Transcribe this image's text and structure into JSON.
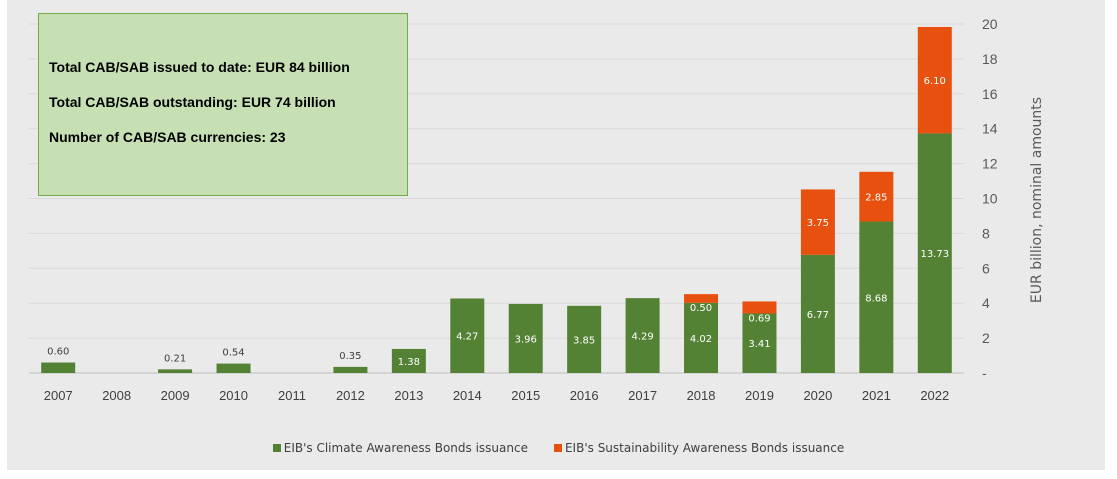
{
  "info_box": {
    "line1": "Total CAB/SAB issued to date: EUR 84 billion",
    "line2": "Total CAB/SAB outstanding: EUR 74 billion",
    "line3": "Number of CAB/SAB currencies: 23"
  },
  "chart_data": {
    "type": "bar",
    "stacked": true,
    "categories": [
      "2007",
      "2008",
      "2009",
      "2010",
      "2011",
      "2012",
      "2013",
      "2014",
      "2015",
      "2016",
      "2017",
      "2018",
      "2019",
      "2020",
      "2021",
      "2022"
    ],
    "series": [
      {
        "name": "EIB's Climate Awareness Bonds issuance",
        "color": "#548235",
        "values": [
          0.6,
          null,
          0.21,
          0.54,
          null,
          0.35,
          1.38,
          4.27,
          3.96,
          3.85,
          4.29,
          4.02,
          3.41,
          6.77,
          8.68,
          13.73
        ],
        "labels": [
          "0.60",
          "",
          "0.21",
          "0.54",
          "",
          "0.35",
          "1.38",
          "4.27",
          "3.96",
          "3.85",
          "4.29",
          "4.02",
          "3.41",
          "6.77",
          "8.68",
          "13.73"
        ]
      },
      {
        "name": "EIB's Sustainability Awareness Bonds issuance",
        "color": "#e8500f",
        "values": [
          null,
          null,
          null,
          null,
          null,
          null,
          null,
          null,
          null,
          null,
          null,
          0.5,
          0.69,
          3.75,
          2.85,
          6.1
        ],
        "labels": [
          "",
          "",
          "",
          "",
          "",
          "",
          "",
          "",
          "",
          "",
          "",
          "0.50",
          "0.69",
          "3.75",
          "2.85",
          "6.10"
        ]
      }
    ],
    "ylabel": "EUR billion, nominal amounts",
    "ylim": [
      0,
      20
    ],
    "yticks": [
      "-",
      "2",
      "4",
      "6",
      "8",
      "10",
      "12",
      "14",
      "16",
      "18",
      "20"
    ],
    "y_axis_position": "right",
    "grid": true,
    "legend_position": "bottom"
  }
}
